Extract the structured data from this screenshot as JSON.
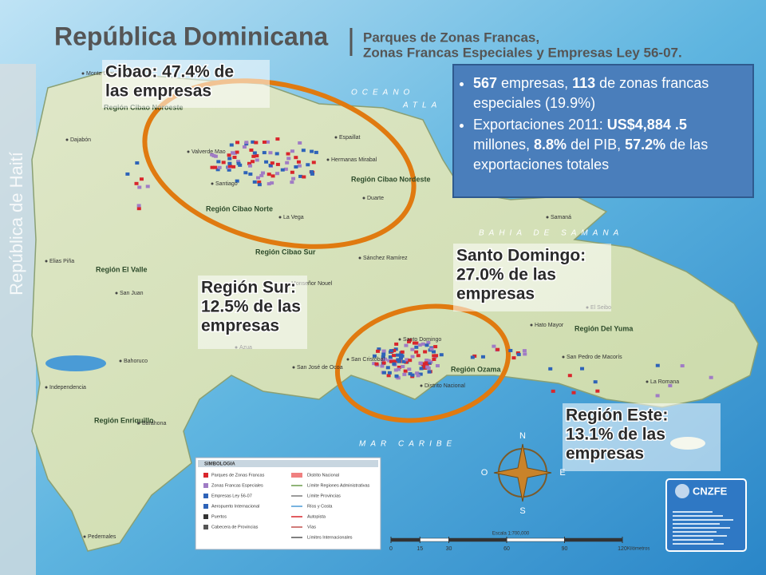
{
  "header": {
    "title": "República Dominicana",
    "subtitle": [
      "Parques de Zonas Francas,",
      "Zonas Francas Especiales y Empresas Ley 56-07."
    ]
  },
  "side_label": "República de Haití",
  "info_box": {
    "bullets": [
      [
        {
          "text": "567",
          "bold": true
        },
        {
          "text": " empresas,  "
        },
        {
          "text": "113",
          "bold": true
        },
        {
          "text": " de zonas francas especiales (19.9%)"
        }
      ],
      [
        {
          "text": "Exportaciones 2011: "
        },
        {
          "text": "US$4,884 .5",
          "bold": true
        },
        {
          "text": " millones, "
        },
        {
          "text": "8.8%",
          "bold": true
        },
        {
          "text": " del PIB, "
        },
        {
          "text": "57.2%",
          "bold": true
        },
        {
          "text": " de las exportaciones totales"
        }
      ]
    ]
  },
  "callouts": [
    {
      "lines": [
        "Cibao: 47.4% de",
        "las empresas"
      ]
    },
    {
      "lines": [
        "Santo Domingo:",
        "27.0% de las",
        "empresas"
      ]
    },
    {
      "lines": [
        "Región Sur:",
        "12.5% de las",
        "empresas"
      ]
    },
    {
      "lines": [
        "Región Este:",
        "13.1% de las",
        "empresas"
      ]
    }
  ],
  "seas": [
    "OCEANO",
    "ATLA",
    "BAHIA DE SAMANA",
    "MAR CARIBE"
  ],
  "regions": [
    "Región Cibao Noroeste",
    "Región Cibao Nordeste",
    "Región Cibao Norte",
    "Región Cibao Sur",
    "Región El Valle",
    "Región Ozama",
    "Región Del Yuma",
    "Región Enriquillo"
  ],
  "places": [
    "Monte Cristi",
    "Dajabón",
    "Valverde Mao",
    "Santiago",
    "Espaillat",
    "Hermanas Mirabal",
    "Duarte",
    "La Vega",
    "Samaná",
    "Elias Piña",
    "San Juan",
    "Azua",
    "Barahona",
    "Independencia",
    "Bahoruco",
    "Santo Domingo",
    "San Cristóbal",
    "Distrito Nacional",
    "Hato Mayor",
    "El Seibo",
    "San Pedro de Macorís",
    "La Romana",
    "Sánchez Ramírez",
    "Monseñor Nouel",
    "Pedernales",
    "San José de Ocoa"
  ],
  "legend": {
    "title": "SIMBOLOGIA",
    "items": [
      "Parques de Zonas Francas",
      "Zonas Francas Especiales",
      "Empresas Ley 56-07",
      "Aeropuerto Internacional",
      "Puertos",
      "Cabecera de Provincias",
      "Distrito Nacional",
      "Límite Regiones Administrativas",
      "Límite Provincias",
      "Ríos y Costa",
      "Autopista",
      "Vías",
      "Límites Internacionales"
    ]
  },
  "compass": [
    "N",
    "O",
    "E",
    "S"
  ],
  "scale": {
    "label": "Escala 1:700,000",
    "ticks": [
      0,
      15,
      30,
      60,
      90,
      120
    ],
    "unit": "Kilómetros"
  },
  "logo": {
    "name": "CNZFE"
  }
}
